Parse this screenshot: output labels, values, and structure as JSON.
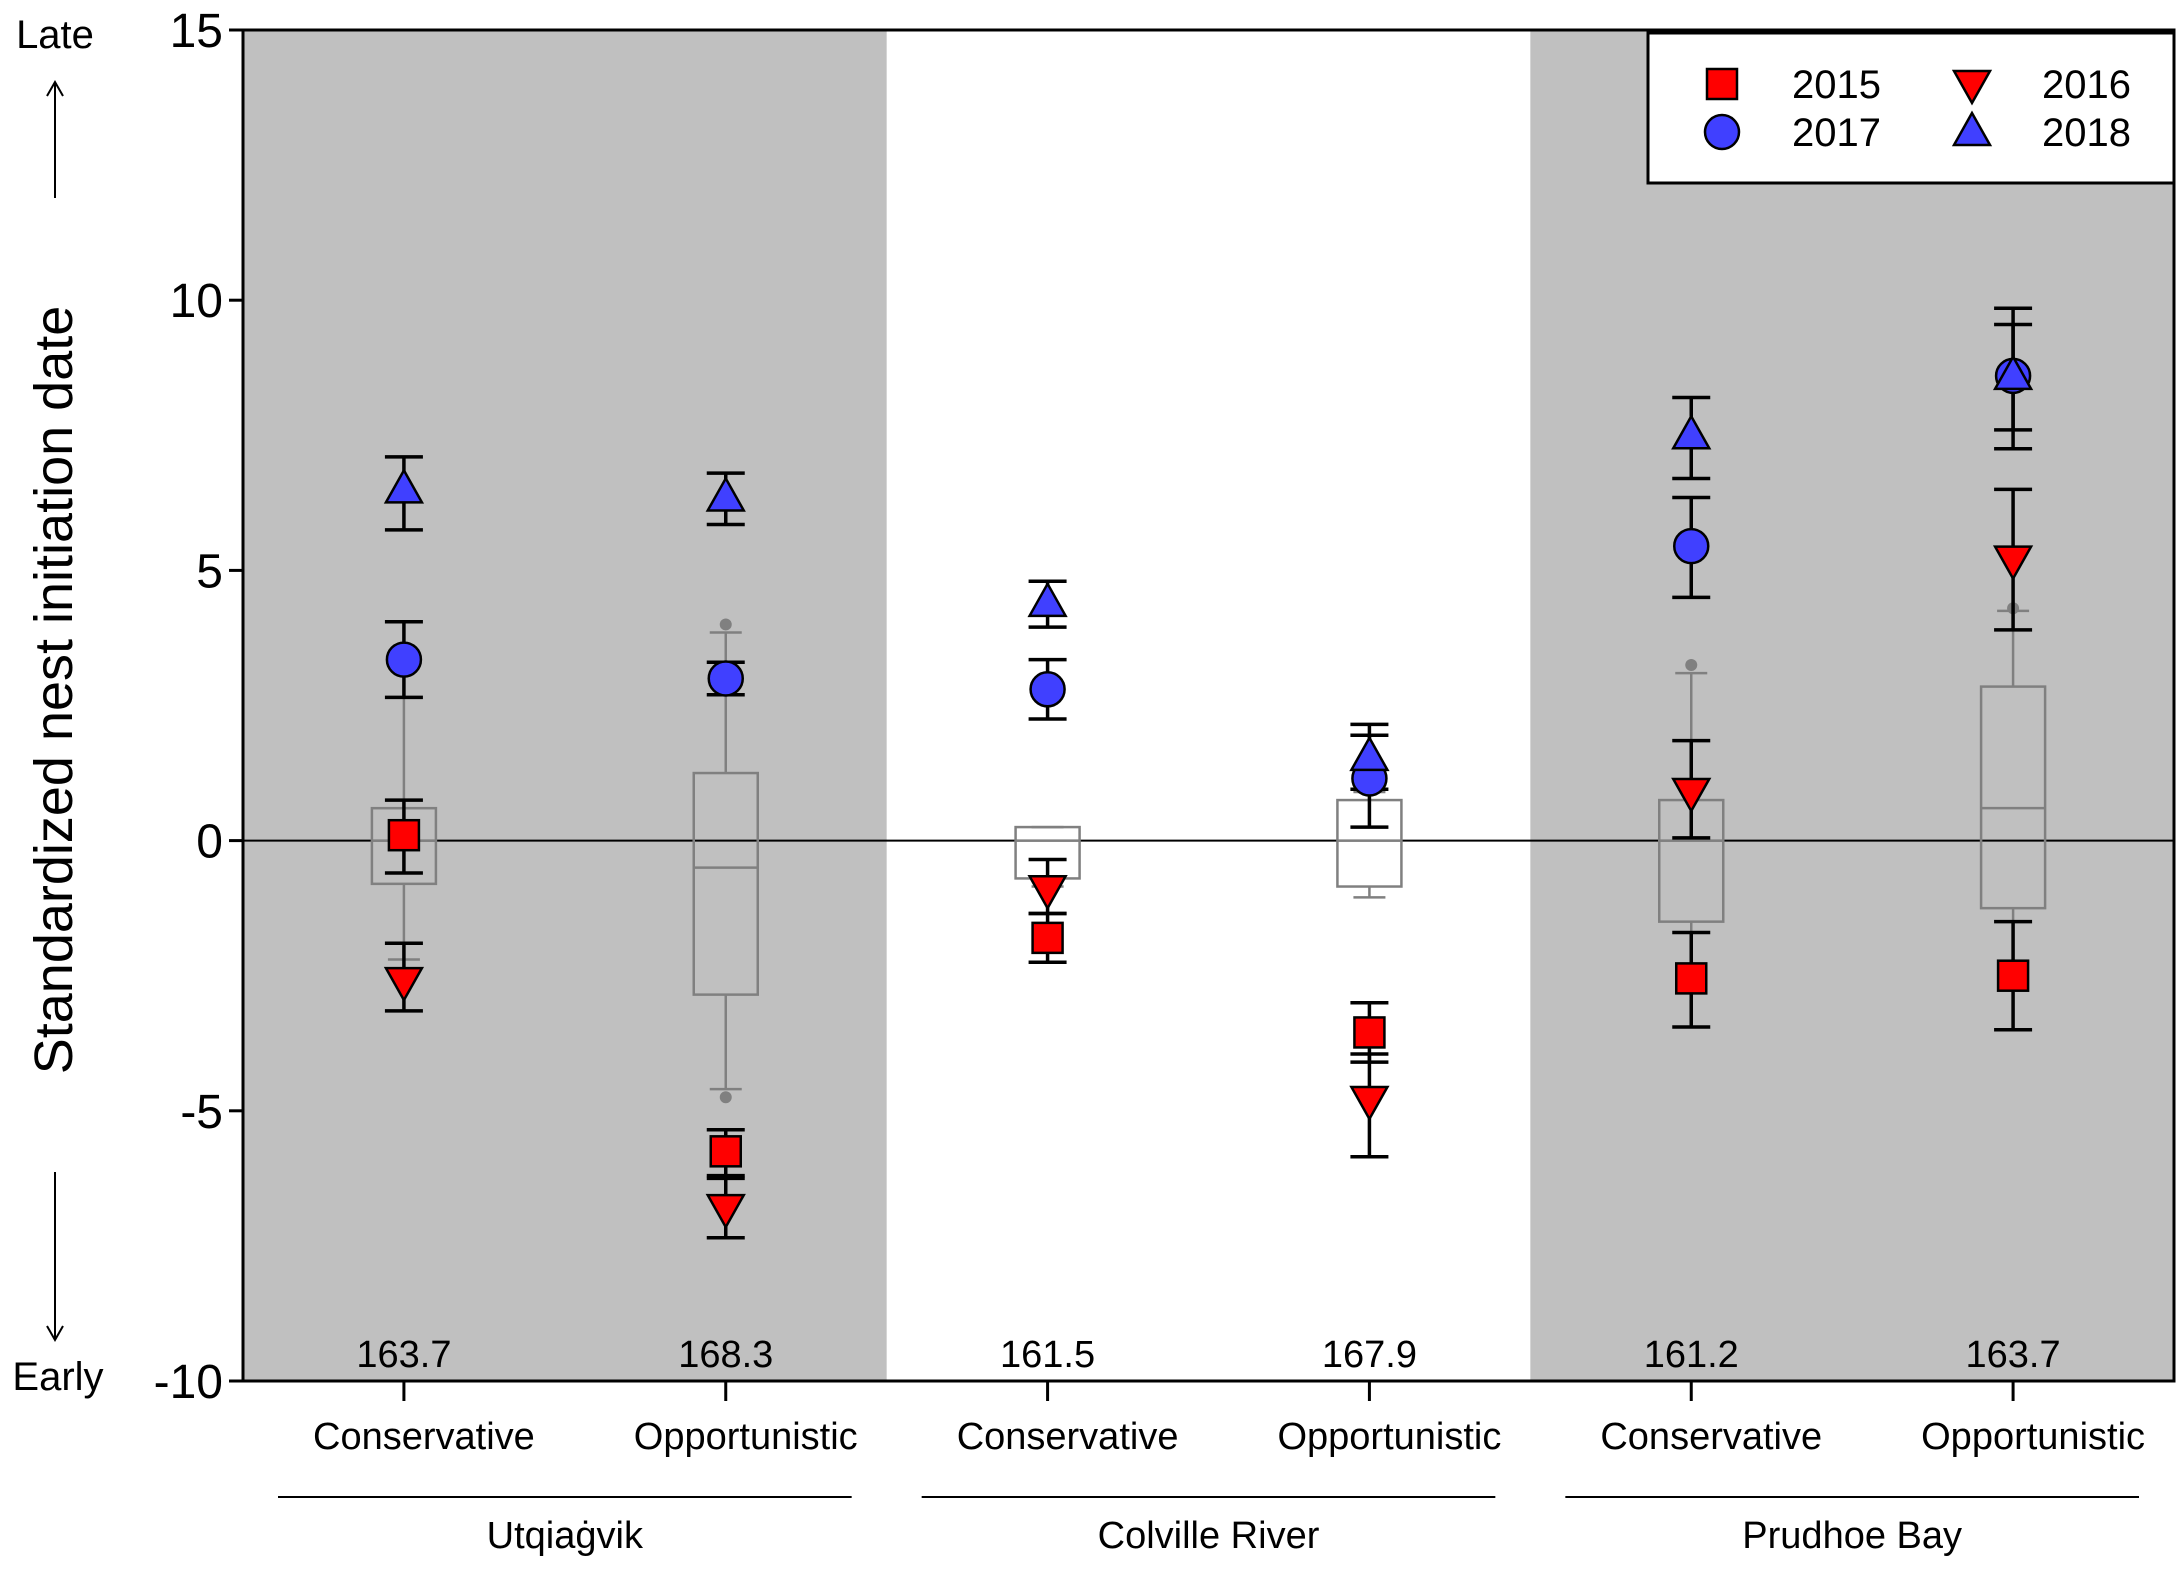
{
  "chart_data": {
    "type": "scatter",
    "title": "",
    "xlabel": "",
    "ylabel": "Standardized nest initiation date",
    "ylim": [
      -10,
      15
    ],
    "yticks": [
      15,
      10,
      5,
      0,
      -5,
      -10
    ],
    "y_direction_labels": {
      "top": "Late",
      "bottom": "Early"
    },
    "site_labels": [
      "Utqiaġvik",
      "Colville River",
      "Prudhoe Bay"
    ],
    "categories": [
      "Conservative",
      "Opportunistic",
      "Conservative",
      "Opportunistic",
      "Conservative",
      "Opportunistic"
    ],
    "category_site": [
      0,
      0,
      1,
      1,
      2,
      2
    ],
    "mean_dates": [
      "163.7",
      "168.3",
      "161.5",
      "167.9",
      "161.2",
      "163.7"
    ],
    "shaded_sites": [
      0,
      2
    ],
    "legend": {
      "position": "top-right",
      "entries": [
        "2015",
        "2016",
        "2017",
        "2018"
      ]
    },
    "colors": {
      "red": "#ff0000",
      "blue": "#4040ff",
      "shade": "#c0c0c0",
      "box": "#808080"
    },
    "boxes": [
      {
        "whisker_low": -2.2,
        "q1": -0.8,
        "median": 0.0,
        "q3": 0.6,
        "whisker_high": 3.3,
        "outliers": []
      },
      {
        "whisker_low": -4.6,
        "q1": -2.85,
        "median": -0.5,
        "q3": 1.25,
        "whisker_high": 3.85,
        "outliers": [
          4.0,
          -4.75
        ]
      },
      {
        "whisker_low": -0.85,
        "q1": -0.7,
        "median": 0.0,
        "q3": 0.25,
        "whisker_high": 0.25,
        "outliers": []
      },
      {
        "whisker_low": -1.05,
        "q1": -0.85,
        "median": 0.0,
        "q3": 0.75,
        "whisker_high": 0.9,
        "outliers": []
      },
      {
        "whisker_low": -1.7,
        "q1": -1.5,
        "median": 0.0,
        "q3": 0.75,
        "whisker_high": 3.1,
        "outliers": [
          3.25
        ]
      },
      {
        "whisker_low": -2.25,
        "q1": -1.25,
        "median": 0.6,
        "q3": 2.85,
        "whisker_high": 4.25,
        "outliers": [
          4.3
        ]
      }
    ],
    "series": [
      {
        "name": "2015",
        "marker": "square",
        "color": "#ff0000",
        "values": [
          0.1,
          -5.75,
          -1.8,
          -3.55,
          -2.55,
          -2.5
        ],
        "errors": [
          [
            -0.6,
            0.75
          ],
          [
            -6.2,
            -5.35
          ],
          [
            -2.25,
            -1.35
          ],
          [
            -4.1,
            -3.0
          ],
          [
            -3.45,
            -1.7
          ],
          [
            -3.5,
            -1.5
          ]
        ]
      },
      {
        "name": "2016",
        "marker": "triangle-down",
        "color": "#ff0000",
        "values": [
          -2.6,
          -6.8,
          -0.9,
          -4.8,
          0.9,
          5.2
        ],
        "errors": [
          [
            -3.15,
            -1.9
          ],
          [
            -7.35,
            -6.25
          ],
          [
            -1.35,
            -0.35
          ],
          [
            -5.85,
            -3.95
          ],
          [
            0.05,
            1.85
          ],
          [
            3.9,
            6.5
          ]
        ]
      },
      {
        "name": "2017",
        "marker": "circle",
        "color": "#4040ff",
        "values": [
          3.35,
          3.0,
          2.8,
          1.15,
          5.45,
          8.6
        ],
        "errors": [
          [
            2.65,
            4.05
          ],
          [
            2.7,
            3.3
          ],
          [
            2.25,
            3.35
          ],
          [
            0.25,
            1.95
          ],
          [
            4.5,
            6.35
          ],
          [
            7.6,
            9.55
          ]
        ]
      },
      {
        "name": "2018",
        "marker": "triangle-up",
        "color": "#4040ff",
        "values": [
          6.5,
          6.35,
          4.4,
          1.55,
          7.5,
          8.6
        ],
        "errors": [
          [
            5.75,
            7.1
          ],
          [
            5.85,
            6.8
          ],
          [
            3.95,
            4.8
          ],
          [
            0.95,
            2.15
          ],
          [
            6.7,
            8.2
          ],
          [
            7.25,
            9.85
          ]
        ]
      }
    ]
  }
}
